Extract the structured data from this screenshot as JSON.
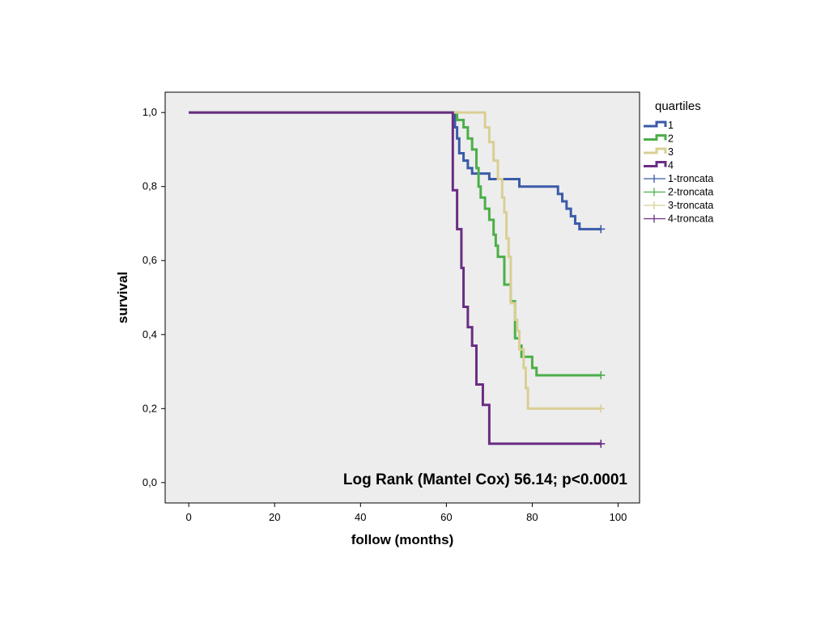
{
  "chart_data": {
    "type": "line",
    "subtype": "kaplan-meier step",
    "xlabel": "follow (months)",
    "ylabel": "survival",
    "xlim": [
      -5.5,
      105
    ],
    "ylim": [
      -0.055,
      1.055
    ],
    "x_ticks": [
      0,
      20,
      40,
      60,
      80,
      100
    ],
    "y_ticks": [
      0.0,
      0.2,
      0.4,
      0.6,
      0.8,
      1.0
    ],
    "y_tick_labels": [
      "0,0",
      "0,2",
      "0,4",
      "0,6",
      "0,8",
      "1,0"
    ],
    "annotation": "Log Rank (Mantel Cox) 56.14; p<0.0001",
    "legend": {
      "title": "quartiles",
      "position": "right",
      "entries": [
        "1",
        "2",
        "3",
        "4",
        "1-troncata",
        "2-troncata",
        "3-troncata",
        "4-troncata"
      ]
    },
    "background": "#ededed",
    "series": [
      {
        "name": "1",
        "color": "#3a5ba8",
        "censored_label": "1-troncata",
        "steps": [
          [
            0,
            1.0
          ],
          [
            61,
            1.0
          ],
          [
            62,
            0.96
          ],
          [
            62.5,
            0.93
          ],
          [
            63,
            0.89
          ],
          [
            64,
            0.87
          ],
          [
            65,
            0.85
          ],
          [
            66,
            0.835
          ],
          [
            70,
            0.82
          ],
          [
            77,
            0.8
          ],
          [
            86,
            0.78
          ],
          [
            87,
            0.76
          ],
          [
            88,
            0.74
          ],
          [
            89,
            0.72
          ],
          [
            90,
            0.7
          ],
          [
            91,
            0.685
          ],
          [
            96,
            0.685
          ]
        ],
        "censored": [
          [
            96,
            0.685
          ]
        ]
      },
      {
        "name": "2",
        "color": "#4caf49",
        "censored_label": "2-troncata",
        "steps": [
          [
            0,
            1.0
          ],
          [
            62,
            1.0
          ],
          [
            62.5,
            0.98
          ],
          [
            64,
            0.96
          ],
          [
            65,
            0.93
          ],
          [
            66,
            0.9
          ],
          [
            67,
            0.85
          ],
          [
            67.5,
            0.8
          ],
          [
            68,
            0.77
          ],
          [
            69,
            0.74
          ],
          [
            70,
            0.71
          ],
          [
            71,
            0.67
          ],
          [
            71.5,
            0.64
          ],
          [
            72,
            0.61
          ],
          [
            73,
            0.61
          ],
          [
            73.5,
            0.535
          ],
          [
            75,
            0.49
          ],
          [
            76,
            0.39
          ],
          [
            77,
            0.37
          ],
          [
            77.5,
            0.34
          ],
          [
            80,
            0.31
          ],
          [
            81,
            0.29
          ],
          [
            96,
            0.29
          ]
        ],
        "censored": [
          [
            96,
            0.29
          ]
        ]
      },
      {
        "name": "3",
        "color": "#d9cf94",
        "censored_label": "3-troncata",
        "steps": [
          [
            0,
            1.0
          ],
          [
            62,
            1.0
          ],
          [
            68,
            1.0
          ],
          [
            69,
            0.96
          ],
          [
            70,
            0.92
          ],
          [
            71,
            0.87
          ],
          [
            72,
            0.82
          ],
          [
            73,
            0.77
          ],
          [
            73.5,
            0.73
          ],
          [
            74,
            0.66
          ],
          [
            74.5,
            0.61
          ],
          [
            75,
            0.485
          ],
          [
            76,
            0.44
          ],
          [
            76.5,
            0.41
          ],
          [
            77,
            0.36
          ],
          [
            78,
            0.31
          ],
          [
            78.5,
            0.255
          ],
          [
            79,
            0.2
          ],
          [
            96,
            0.2
          ]
        ],
        "censored": [
          [
            96,
            0.2
          ]
        ]
      },
      {
        "name": "4",
        "color": "#6a2d83",
        "censored_label": "4-troncata",
        "steps": [
          [
            0,
            1.0
          ],
          [
            61,
            1.0
          ],
          [
            61.5,
            0.79
          ],
          [
            62,
            0.79
          ],
          [
            62.5,
            0.685
          ],
          [
            63.5,
            0.58
          ],
          [
            64,
            0.475
          ],
          [
            65,
            0.42
          ],
          [
            66,
            0.37
          ],
          [
            67,
            0.265
          ],
          [
            68.5,
            0.21
          ],
          [
            70,
            0.105
          ],
          [
            96,
            0.105
          ]
        ],
        "censored": [
          [
            96,
            0.105
          ]
        ]
      }
    ]
  }
}
